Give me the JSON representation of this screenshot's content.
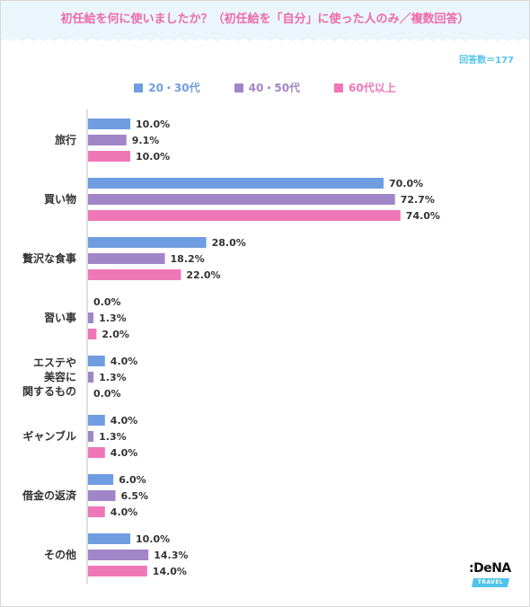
{
  "header": {
    "title": "初任給を何に使いましたか？（初任給を「自分」に使った人のみ／複数回答）",
    "respondents": "回答数＝177"
  },
  "colors": {
    "title": "#ef6aa9",
    "accent": "#4fc3ea",
    "band": "#eaf6fc"
  },
  "logo": {
    "text": ":DeNA",
    "sub": "TRAVEL"
  },
  "chart_data": {
    "type": "bar",
    "orientation": "horizontal",
    "xlim": [
      0,
      100
    ],
    "legend_position": "top",
    "grid": false,
    "categories": [
      "旅行",
      "買い物",
      "贅沢な食事",
      "習い事",
      "エステや 美容に 関するもの",
      "ギャンブル",
      "借金の返済",
      "その他"
    ],
    "category_lines": [
      [
        "旅行"
      ],
      [
        "買い物"
      ],
      [
        "贅沢な食事"
      ],
      [
        "習い事"
      ],
      [
        "エステや",
        "美容に",
        "関するもの"
      ],
      [
        "ギャンブル"
      ],
      [
        "借金の返済"
      ],
      [
        "その他"
      ]
    ],
    "series": [
      {
        "name": "20・30代",
        "color": "#6f9de2",
        "values": [
          10.0,
          70.0,
          28.0,
          0.0,
          4.0,
          4.0,
          6.0,
          10.0
        ],
        "labels": [
          "10.0%",
          "70.0%",
          "28.0%",
          "0.0%",
          "4.0%",
          "4.0%",
          "6.0%",
          "10.0%"
        ]
      },
      {
        "name": "40・50代",
        "color": "#a185c9",
        "values": [
          9.1,
          72.7,
          18.2,
          1.3,
          1.3,
          1.3,
          6.5,
          14.3
        ],
        "labels": [
          "9.1%",
          "72.7%",
          "18.2%",
          "1.3%",
          "1.3%",
          "1.3%",
          "6.5%",
          "14.3%"
        ]
      },
      {
        "name": "60代以上",
        "color": "#ef77b8",
        "values": [
          10.0,
          74.0,
          22.0,
          2.0,
          0.0,
          4.0,
          4.0,
          14.0
        ],
        "labels": [
          "10.0%",
          "74.0%",
          "22.0%",
          "2.0%",
          "0.0%",
          "4.0%",
          "4.0%",
          "14.0%"
        ]
      }
    ]
  }
}
